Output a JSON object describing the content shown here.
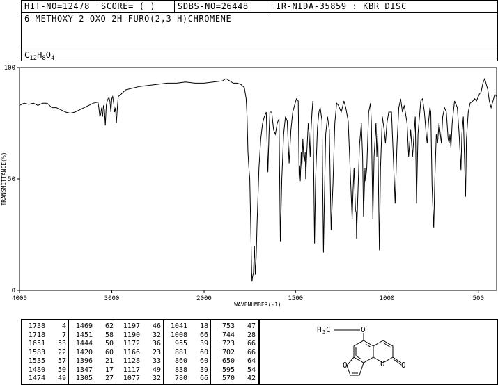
{
  "header": {
    "hit_no": "HIT-NO=12478",
    "score": "SCORE=  (  )",
    "sdbs_no": "SDBS-NO=26448",
    "ir_code": "IR-NIDA-35859 : KBR DISC",
    "compound_name": "6-METHOXY-2-OXO-2H-FURO(2,3-H)CHROMENE",
    "formula_c": "C",
    "formula_c_sub": "12",
    "formula_h": "H",
    "formula_h_sub": "8",
    "formula_o": "O",
    "formula_o_sub": "4"
  },
  "chart_data": {
    "type": "line",
    "xlabel": "WAVENUMBER(-1)",
    "ylabel": "TRANSMITTANCE(%)",
    "xlim": [
      4000,
      400
    ],
    "ylim": [
      0,
      100
    ],
    "x_ticks": [
      "4000",
      "3000",
      "2000",
      "1500",
      "1000",
      "500"
    ],
    "y_ticks": [
      "100",
      "50",
      "0"
    ],
    "series": [
      {
        "points": [
          [
            4000,
            83
          ],
          [
            3950,
            84
          ],
          [
            3900,
            83.5
          ],
          [
            3850,
            84
          ],
          [
            3800,
            83
          ],
          [
            3750,
            84
          ],
          [
            3700,
            84
          ],
          [
            3650,
            82
          ],
          [
            3600,
            82
          ],
          [
            3550,
            81
          ],
          [
            3500,
            80
          ],
          [
            3450,
            79.5
          ],
          [
            3400,
            80
          ],
          [
            3350,
            81
          ],
          [
            3300,
            82
          ],
          [
            3250,
            83
          ],
          [
            3200,
            84
          ],
          [
            3150,
            84.5
          ],
          [
            3140,
            82
          ],
          [
            3130,
            78
          ],
          [
            3120,
            79
          ],
          [
            3110,
            82
          ],
          [
            3100,
            78
          ],
          [
            3090,
            83
          ],
          [
            3080,
            81
          ],
          [
            3070,
            74
          ],
          [
            3060,
            83
          ],
          [
            3050,
            85
          ],
          [
            3040,
            86
          ],
          [
            3030,
            86.5
          ],
          [
            3020,
            85
          ],
          [
            3010,
            80
          ],
          [
            3000,
            86
          ],
          [
            2990,
            87
          ],
          [
            2980,
            84
          ],
          [
            2970,
            80
          ],
          [
            2960,
            82
          ],
          [
            2950,
            75
          ],
          [
            2940,
            82
          ],
          [
            2930,
            87
          ],
          [
            2900,
            88
          ],
          [
            2850,
            90
          ],
          [
            2800,
            90.5
          ],
          [
            2700,
            91.5
          ],
          [
            2600,
            92
          ],
          [
            2500,
            92.5
          ],
          [
            2400,
            93
          ],
          [
            2300,
            93
          ],
          [
            2200,
            93.5
          ],
          [
            2100,
            93
          ],
          [
            2000,
            93
          ],
          [
            1950,
            93.5
          ],
          [
            1900,
            94
          ],
          [
            1880,
            95
          ],
          [
            1860,
            94
          ],
          [
            1840,
            93
          ],
          [
            1820,
            93
          ],
          [
            1800,
            92.5
          ],
          [
            1780,
            91
          ],
          [
            1770,
            86
          ],
          [
            1765,
            78
          ],
          [
            1760,
            62
          ],
          [
            1755,
            55
          ],
          [
            1750,
            50
          ],
          [
            1745,
            30
          ],
          [
            1740,
            8
          ],
          [
            1738,
            4
          ],
          [
            1735,
            6
          ],
          [
            1730,
            8
          ],
          [
            1725,
            20
          ],
          [
            1720,
            7
          ],
          [
            1715,
            15
          ],
          [
            1710,
            30
          ],
          [
            1700,
            55
          ],
          [
            1690,
            68
          ],
          [
            1680,
            75
          ],
          [
            1670,
            78
          ],
          [
            1660,
            80
          ],
          [
            1651,
            53
          ],
          [
            1645,
            70
          ],
          [
            1640,
            80
          ],
          [
            1630,
            80
          ],
          [
            1620,
            72
          ],
          [
            1610,
            70
          ],
          [
            1600,
            75
          ],
          [
            1590,
            77
          ],
          [
            1583,
            22
          ],
          [
            1575,
            50
          ],
          [
            1565,
            70
          ],
          [
            1555,
            78
          ],
          [
            1545,
            76
          ],
          [
            1535,
            57
          ],
          [
            1525,
            72
          ],
          [
            1515,
            80
          ],
          [
            1505,
            83
          ],
          [
            1495,
            86
          ],
          [
            1485,
            85
          ],
          [
            1480,
            50
          ],
          [
            1477,
            56
          ],
          [
            1474,
            49
          ],
          [
            1470,
            58
          ],
          [
            1469,
            62
          ],
          [
            1465,
            55
          ],
          [
            1460,
            68
          ],
          [
            1455,
            60
          ],
          [
            1451,
            58
          ],
          [
            1447,
            62
          ],
          [
            1444,
            50
          ],
          [
            1438,
            62
          ],
          [
            1430,
            75
          ],
          [
            1425,
            70
          ],
          [
            1420,
            60
          ],
          [
            1415,
            72
          ],
          [
            1410,
            80
          ],
          [
            1405,
            85
          ],
          [
            1396,
            21
          ],
          [
            1390,
            50
          ],
          [
            1380,
            73
          ],
          [
            1372,
            80
          ],
          [
            1365,
            82
          ],
          [
            1355,
            76
          ],
          [
            1347,
            17
          ],
          [
            1342,
            40
          ],
          [
            1335,
            70
          ],
          [
            1325,
            78
          ],
          [
            1315,
            72
          ],
          [
            1305,
            27
          ],
          [
            1295,
            48
          ],
          [
            1285,
            75
          ],
          [
            1275,
            84
          ],
          [
            1265,
            83
          ],
          [
            1250,
            80
          ],
          [
            1235,
            85
          ],
          [
            1225,
            82
          ],
          [
            1212,
            76
          ],
          [
            1197,
            46
          ],
          [
            1190,
            32
          ],
          [
            1185,
            45
          ],
          [
            1180,
            55
          ],
          [
            1172,
            36
          ],
          [
            1168,
            35
          ],
          [
            1166,
            23
          ],
          [
            1160,
            40
          ],
          [
            1150,
            65
          ],
          [
            1140,
            75
          ],
          [
            1133,
            60
          ],
          [
            1128,
            33
          ],
          [
            1120,
            55
          ],
          [
            1117,
            49
          ],
          [
            1110,
            55
          ],
          [
            1100,
            80
          ],
          [
            1090,
            84
          ],
          [
            1085,
            75
          ],
          [
            1077,
            32
          ],
          [
            1070,
            60
          ],
          [
            1060,
            75
          ],
          [
            1055,
            60
          ],
          [
            1050,
            70
          ],
          [
            1041,
            18
          ],
          [
            1035,
            55
          ],
          [
            1025,
            78
          ],
          [
            1015,
            72
          ],
          [
            1008,
            66
          ],
          [
            1000,
            75
          ],
          [
            990,
            80
          ],
          [
            975,
            80
          ],
          [
            955,
            39
          ],
          [
            945,
            65
          ],
          [
            935,
            82
          ],
          [
            925,
            86
          ],
          [
            915,
            80
          ],
          [
            905,
            83
          ],
          [
            890,
            75
          ],
          [
            881,
            60
          ],
          [
            870,
            72
          ],
          [
            860,
            60
          ],
          [
            852,
            70
          ],
          [
            845,
            78
          ],
          [
            838,
            39
          ],
          [
            830,
            70
          ],
          [
            815,
            85
          ],
          [
            805,
            86
          ],
          [
            795,
            80
          ],
          [
            785,
            70
          ],
          [
            780,
            66
          ],
          [
            773,
            75
          ],
          [
            765,
            82
          ],
          [
            760,
            80
          ],
          [
            753,
            47
          ],
          [
            748,
            36
          ],
          [
            744,
            28
          ],
          [
            738,
            50
          ],
          [
            730,
            70
          ],
          [
            723,
            66
          ],
          [
            715,
            75
          ],
          [
            702,
            66
          ],
          [
            695,
            78
          ],
          [
            685,
            82
          ],
          [
            675,
            80
          ],
          [
            665,
            68
          ],
          [
            660,
            66
          ],
          [
            655,
            70
          ],
          [
            650,
            64
          ],
          [
            643,
            75
          ],
          [
            630,
            85
          ],
          [
            615,
            82
          ],
          [
            605,
            70
          ],
          [
            595,
            54
          ],
          [
            590,
            70
          ],
          [
            582,
            78
          ],
          [
            570,
            42
          ],
          [
            565,
            68
          ],
          [
            555,
            80
          ],
          [
            545,
            84
          ],
          [
            530,
            85
          ],
          [
            520,
            86
          ],
          [
            510,
            85
          ],
          [
            495,
            88
          ],
          [
            485,
            89
          ],
          [
            475,
            93
          ],
          [
            465,
            95
          ],
          [
            455,
            92
          ],
          [
            448,
            90
          ],
          [
            440,
            85
          ],
          [
            430,
            82
          ],
          [
            420,
            85
          ],
          [
            410,
            88
          ],
          [
            400,
            87
          ]
        ]
      }
    ]
  },
  "peak_table": {
    "columns": [
      {
        "rows": [
          [
            "1738",
            "4"
          ],
          [
            "1718",
            "7"
          ],
          [
            "1651",
            "53"
          ],
          [
            "1583",
            "22"
          ],
          [
            "1535",
            "57"
          ],
          [
            "1480",
            "50"
          ],
          [
            "1474",
            "49"
          ]
        ]
      },
      {
        "rows": [
          [
            "1469",
            "62"
          ],
          [
            "1451",
            "58"
          ],
          [
            "1444",
            "50"
          ],
          [
            "1420",
            "60"
          ],
          [
            "1396",
            "21"
          ],
          [
            "1347",
            "17"
          ],
          [
            "1305",
            "27"
          ]
        ]
      },
      {
        "rows": [
          [
            "1197",
            "46"
          ],
          [
            "1190",
            "32"
          ],
          [
            "1172",
            "36"
          ],
          [
            "1166",
            "23"
          ],
          [
            "1128",
            "33"
          ],
          [
            "1117",
            "49"
          ],
          [
            "1077",
            "32"
          ]
        ]
      },
      {
        "rows": [
          [
            "1041",
            "18"
          ],
          [
            "1008",
            "66"
          ],
          [
            "955",
            "39"
          ],
          [
            "881",
            "60"
          ],
          [
            "860",
            "60"
          ],
          [
            "838",
            "39"
          ],
          [
            "780",
            "66"
          ]
        ]
      },
      {
        "rows": [
          [
            "753",
            "47"
          ],
          [
            "744",
            "28"
          ],
          [
            "723",
            "66"
          ],
          [
            "702",
            "66"
          ],
          [
            "650",
            "64"
          ],
          [
            "595",
            "54"
          ],
          [
            "570",
            "42"
          ]
        ]
      }
    ]
  },
  "structure": {
    "methyl_label": "H",
    "methyl_sub": "3",
    "methyl_c": "C",
    "oxygen_label": "O",
    "ring_o1": "O",
    "ring_o2": "O",
    "carbonyl_o": "O"
  }
}
